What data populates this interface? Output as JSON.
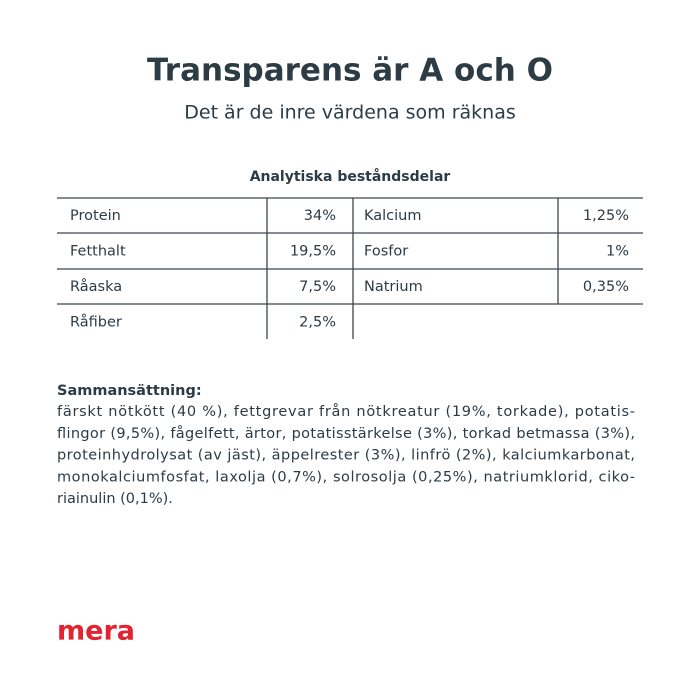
{
  "header": {
    "title": "Transparens är A och O",
    "subtitle": "Det är de inre värdena som räknas"
  },
  "table": {
    "title": "Analytiska beståndsdelar",
    "rows": [
      [
        "Protein",
        "34%",
        "Kalcium",
        "1,25%"
      ],
      [
        "Fetthalt",
        "19,5%",
        "Fosfor",
        "1%"
      ],
      [
        "Råaska",
        "7,5%",
        "Natrium",
        "0,35%"
      ],
      [
        "Råfiber",
        "2,5%"
      ]
    ]
  },
  "composition": {
    "heading": "Sammansättning:",
    "lines": [
      "färskt nötkött (40 %), fettgrevar från nötkreatur (19%, torkade), potatis-",
      "flingor (9,5%), fågelfett, ärtor, potatisstärkelse (3%), torkad betmassa (3%),",
      "proteinhydrolysat (av jäst), äppelrester (3%), linfrö (2%), kalciumkarbonat,",
      "monokalciumfosfat, laxolja (0,7%), solrosolja (0,25%), natriumklorid, ciko-",
      "riainulin (0,1%)."
    ]
  },
  "logo": "mera"
}
